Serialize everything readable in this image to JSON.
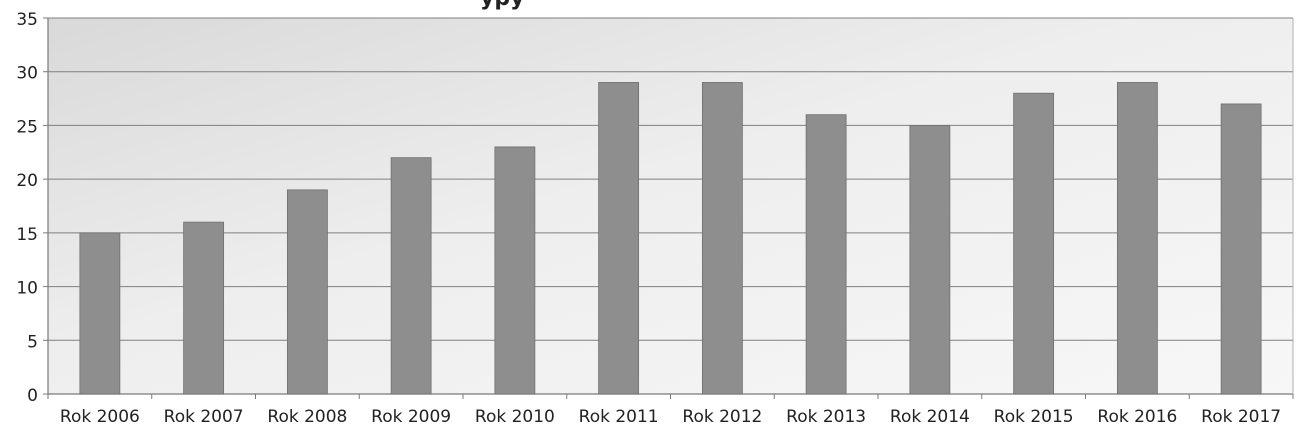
{
  "chart_data": {
    "type": "bar",
    "title": "",
    "xlabel": "",
    "ylabel": "",
    "categories": [
      "Rok 2006",
      "Rok 2007",
      "Rok 2008",
      "Rok 2009",
      "Rok 2010",
      "Rok 2011",
      "Rok 2012",
      "Rok 2013",
      "Rok 2014",
      "Rok 2015",
      "Rok 2016",
      "Rok 2017"
    ],
    "values": [
      15,
      16,
      19,
      22,
      23,
      29,
      29,
      26,
      25,
      28,
      29,
      27
    ],
    "ylim": [
      0,
      35
    ],
    "yticks": [
      0,
      5,
      10,
      15,
      20,
      25,
      30,
      35
    ],
    "grid": true,
    "legend": "none",
    "colors": {
      "bar": "#8e8e8e",
      "bar_edge": "#6f6f6f",
      "grid": "#808080",
      "axis": "#7a7a7a",
      "text": "#222222"
    }
  }
}
